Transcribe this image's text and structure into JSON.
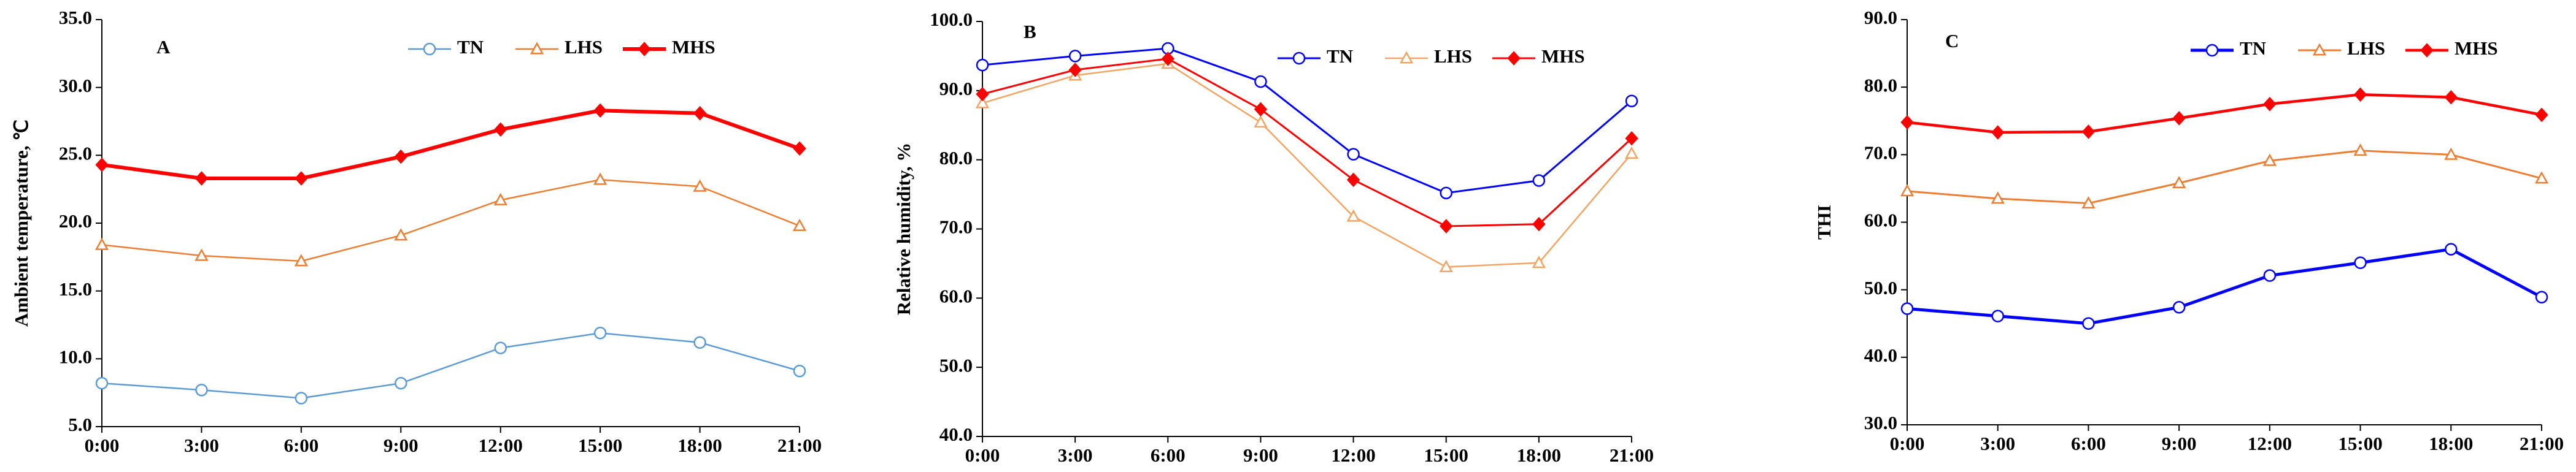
{
  "chart_data": [
    {
      "type": "line",
      "title": "A",
      "ylabel": "Ambient  temperature, ℃",
      "categories": [
        "0:00",
        "3:00",
        "6:00",
        "9:00",
        "12:00",
        "15:00",
        "18:00",
        "21:00"
      ],
      "ylim": [
        5,
        35
      ],
      "yticks": [
        {
          "value": 5,
          "label": "5.0"
        },
        {
          "value": 10,
          "label": "10.0"
        },
        {
          "value": 15,
          "label": "15.0"
        },
        {
          "value": 20,
          "label": "20.0"
        },
        {
          "value": 25,
          "label": "25.0"
        },
        {
          "value": 30,
          "label": "30.0"
        },
        {
          "value": 35,
          "label": "35.0"
        }
      ],
      "series": [
        {
          "name": "TN",
          "color": "#5b9bd5",
          "marker": "circle",
          "values": [
            8.2,
            7.7,
            7.1,
            8.2,
            10.8,
            11.9,
            11.2,
            9.1
          ]
        },
        {
          "name": "LHS",
          "color": "#ed7d31",
          "marker": "triangle",
          "values": [
            18.4,
            17.6,
            17.2,
            19.1,
            21.7,
            23.2,
            22.7,
            19.8
          ]
        },
        {
          "name": "MHS",
          "color": "#ff0000",
          "marker": "diamond",
          "values": [
            24.3,
            23.3,
            23.3,
            24.9,
            26.9,
            28.3,
            28.1,
            25.5
          ]
        }
      ]
    },
    {
      "type": "line",
      "title": "B",
      "ylabel": "Relative humidity, %",
      "categories": [
        "0:00",
        "3:00",
        "6:00",
        "9:00",
        "12:00",
        "15:00",
        "18:00",
        "21:00"
      ],
      "ylim": [
        40,
        100
      ],
      "yticks": [
        {
          "value": 40,
          "label": "40.0"
        },
        {
          "value": 50,
          "label": "50.0"
        },
        {
          "value": 60,
          "label": "60.0"
        },
        {
          "value": 70,
          "label": "70.0"
        },
        {
          "value": 80,
          "label": "80.0"
        },
        {
          "value": 90,
          "label": "90.0"
        },
        {
          "value": 100,
          "label": "100.0"
        }
      ],
      "series": [
        {
          "name": "TN",
          "color": "#0000ff",
          "marker": "circle",
          "values": [
            93.7,
            95.0,
            96.1,
            91.3,
            80.8,
            75.2,
            77.0,
            88.5
          ]
        },
        {
          "name": "LHS",
          "color": "#f4a460",
          "marker": "triangle",
          "values": [
            88.2,
            92.2,
            93.9,
            85.4,
            71.8,
            64.5,
            65.1,
            80.9
          ]
        },
        {
          "name": "MHS",
          "color": "#ff0000",
          "marker": "diamond",
          "values": [
            89.5,
            93.0,
            94.6,
            87.3,
            77.1,
            70.4,
            70.7,
            83.1
          ]
        }
      ]
    },
    {
      "type": "line",
      "title": "C",
      "ylabel": "THI",
      "categories": [
        "0:00",
        "3:00",
        "6:00",
        "9:00",
        "12:00",
        "15:00",
        "18:00",
        "21:00"
      ],
      "ylim": [
        30,
        90
      ],
      "yticks": [
        {
          "value": 30,
          "label": "30.0"
        },
        {
          "value": 40,
          "label": "40.0"
        },
        {
          "value": 50,
          "label": "50.0"
        },
        {
          "value": 60,
          "label": "60.0"
        },
        {
          "value": 70,
          "label": "70.0"
        },
        {
          "value": 80,
          "label": "80.0"
        },
        {
          "value": 90,
          "label": "90.0"
        }
      ],
      "series": [
        {
          "name": "TN",
          "color": "#0000ff",
          "marker": "circle",
          "values": [
            47.2,
            46.1,
            45.0,
            47.4,
            52.1,
            54.0,
            56.0,
            48.9
          ]
        },
        {
          "name": "LHS",
          "color": "#ed7d31",
          "marker": "triangle",
          "values": [
            64.6,
            63.5,
            62.8,
            65.8,
            69.1,
            70.6,
            70.0,
            66.5
          ]
        },
        {
          "name": "MHS",
          "color": "#ff0000",
          "marker": "diamond",
          "values": [
            74.8,
            73.3,
            73.4,
            75.4,
            77.5,
            78.9,
            78.5,
            75.9
          ]
        }
      ]
    }
  ]
}
